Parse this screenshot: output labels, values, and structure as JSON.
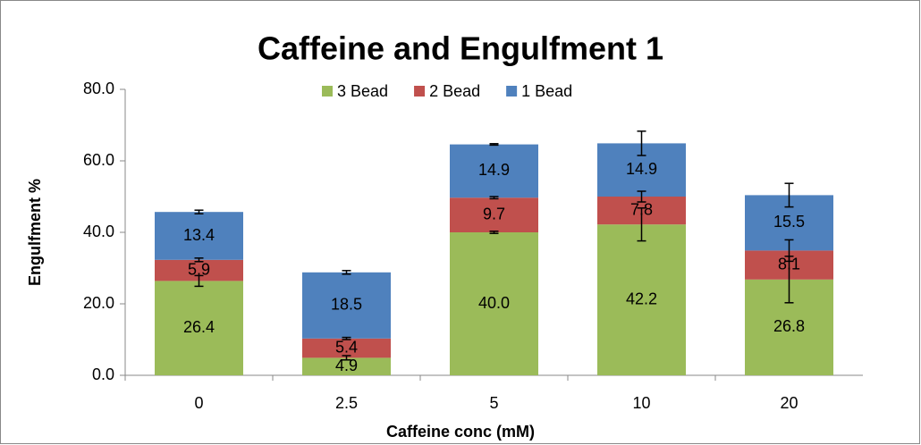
{
  "chart_data": {
    "type": "stacked_bar",
    "title": "Caffeine and Engulfment 1",
    "x_label": "Caffeine conc (mM)",
    "y_label": "Engulfment %",
    "categories": [
      "0",
      "2.5",
      "5",
      "10",
      "20"
    ],
    "series": [
      {
        "name": "3 Bead",
        "color": "#9bbb59",
        "values": [
          26.4,
          4.9,
          40.0,
          42.2,
          26.8
        ],
        "value_labels": [
          "26.4",
          "4.9",
          "40.0",
          "42.2",
          "26.8"
        ],
        "errors": [
          1.5,
          0.6,
          0.3,
          4.6,
          6.5
        ]
      },
      {
        "name": "2 Bead",
        "color": "#c0504d",
        "values": [
          5.9,
          5.4,
          9.7,
          7.8,
          8.1
        ],
        "errors": [
          0.5,
          0.3,
          0.3,
          1.5,
          3.0
        ]
      },
      {
        "name": "1 Bead",
        "color": "#4f81bd",
        "values": [
          13.4,
          18.5,
          14.9,
          14.9,
          15.5
        ],
        "errors": [
          0.5,
          0.5,
          0.2,
          3.4,
          3.3
        ]
      }
    ],
    "ylim": [
      0,
      80
    ],
    "yticks": [
      {
        "value": 0,
        "label": "0.0"
      },
      {
        "value": 20,
        "label": "20.0"
      },
      {
        "value": 40,
        "label": "40.0"
      },
      {
        "value": 60,
        "label": "60.0"
      },
      {
        "value": 80,
        "label": "80.0"
      }
    ],
    "legend": "top"
  }
}
